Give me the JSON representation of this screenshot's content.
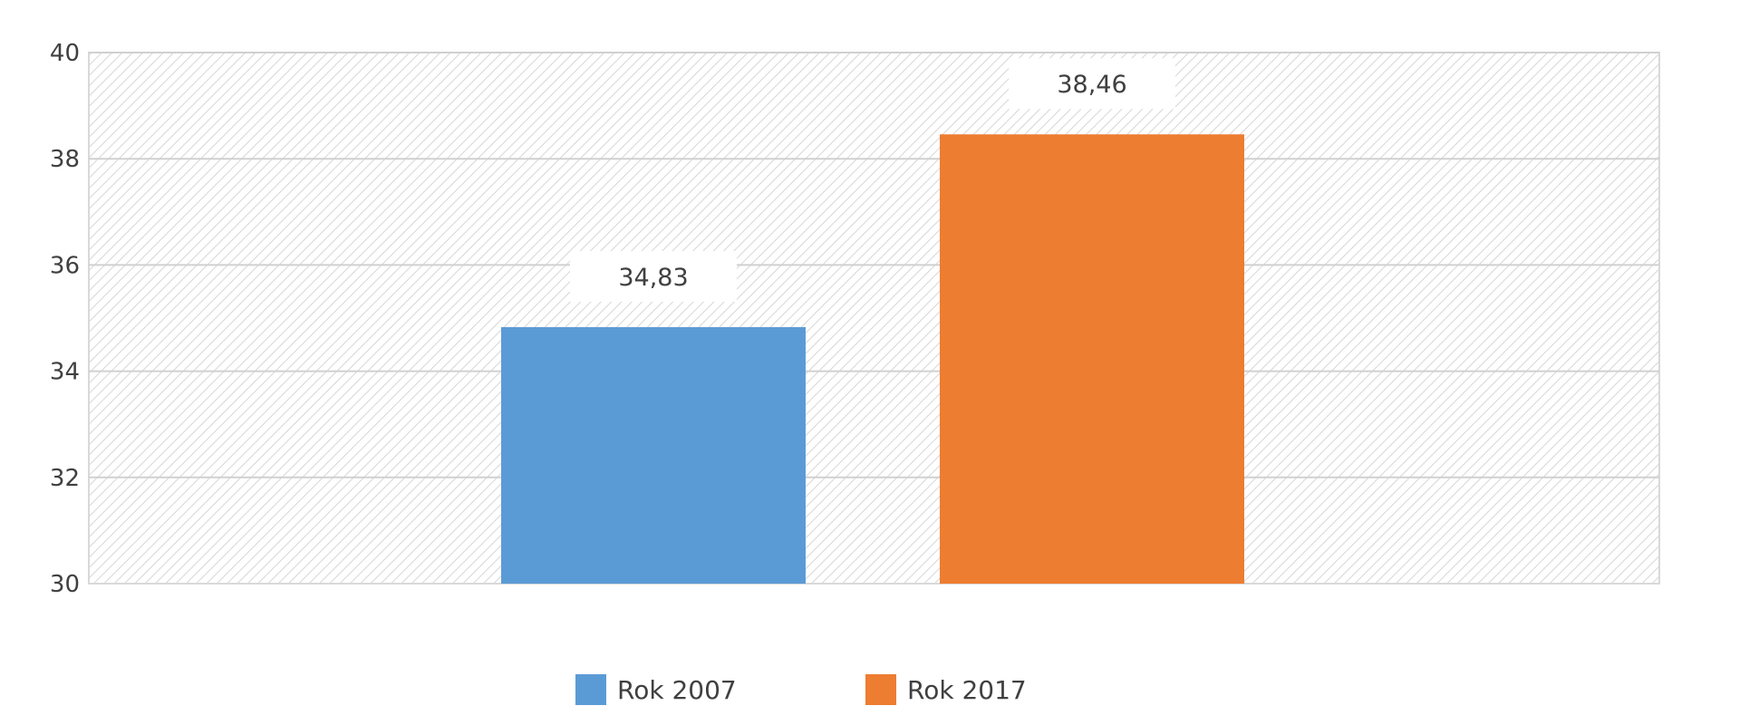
{
  "chart_data": {
    "type": "bar",
    "categories": [
      ""
    ],
    "series": [
      {
        "name": "Rok 2007",
        "values": [
          34.83
        ],
        "color": "#5B9BD5",
        "label": "34,83"
      },
      {
        "name": "Rok 2017",
        "values": [
          38.46
        ],
        "color": "#ED7D31",
        "label": "38,46"
      }
    ],
    "ylim": [
      30,
      40
    ],
    "yticks": [
      {
        "value": 30,
        "label": "30"
      },
      {
        "value": 32,
        "label": "32"
      },
      {
        "value": 34,
        "label": "34"
      },
      {
        "value": 36,
        "label": "36"
      },
      {
        "value": 38,
        "label": "38"
      },
      {
        "value": 40,
        "label": "40"
      }
    ],
    "grid": true,
    "background_pattern": "diagonal-hatch",
    "legend_position": "bottom",
    "title": "",
    "xlabel": "",
    "ylabel": ""
  }
}
